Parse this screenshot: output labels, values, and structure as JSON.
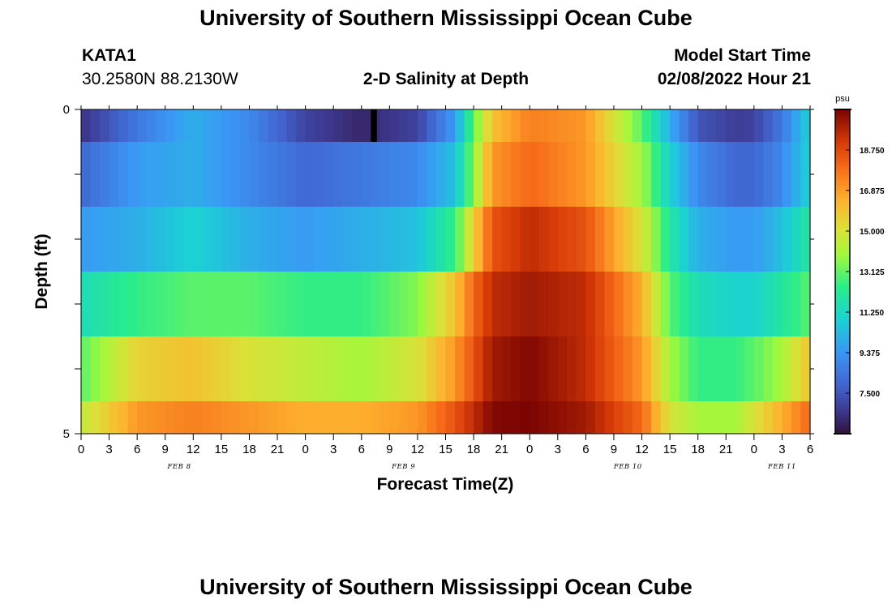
{
  "header": {
    "title_top": "University of Southern Mississippi Ocean Cube",
    "station": "KATA1",
    "coords": "30.2580N  88.2130W",
    "plot_title": "2-D Salinity at Depth",
    "model_label": "Model Start Time",
    "model_time": "02/08/2022 Hour 21",
    "title_bottom": "University of Southern Mississippi Ocean Cube"
  },
  "chart_data": {
    "type": "heatmap",
    "title": "2-D Salinity at Depth",
    "xlabel": "Forecast Time(Z)",
    "ylabel": "Depth (ft)",
    "ylim": [
      0,
      5
    ],
    "y_tick_labels": [
      "0",
      "5"
    ],
    "x_tick_labels": [
      "0",
      "3",
      "6",
      "9",
      "12",
      "15",
      "18",
      "21",
      "0",
      "3",
      "6",
      "9",
      "12",
      "15",
      "18",
      "21",
      "0",
      "3",
      "6",
      "9",
      "12",
      "15",
      "18",
      "21",
      "0",
      "3",
      "6"
    ],
    "x_hours_range": [
      0,
      78
    ],
    "date_labels": [
      {
        "label": "FEB 8",
        "hour": 10.5
      },
      {
        "label": "FEB 9",
        "hour": 34.5
      },
      {
        "label": "FEB 10",
        "hour": 58.5
      },
      {
        "label": "FEB 11",
        "hour": 75
      }
    ],
    "colorbar": {
      "unit": "psu",
      "min": 5.625,
      "max": 20.625,
      "tick_labels": [
        "18.750",
        "16.875",
        "15.000",
        "13.125",
        "11.250",
        "9.375",
        "7.500"
      ],
      "tick_values": [
        18.75,
        16.875,
        15.0,
        13.125,
        11.25,
        9.375,
        7.5
      ]
    },
    "depth_rows": [
      {
        "depth_range": [
          0.0,
          0.5
        ],
        "key_hours": [
          0,
          6,
          12,
          18,
          24,
          30,
          36,
          40,
          42,
          44,
          48,
          54,
          60,
          63,
          66,
          70,
          72,
          75,
          78
        ],
        "values": [
          6.5,
          8.5,
          10.0,
          9.0,
          7.0,
          6.2,
          7.0,
          9.5,
          13.0,
          16.0,
          17.5,
          17.0,
          13.0,
          10.0,
          7.5,
          6.8,
          7.0,
          8.5,
          11.0
        ]
      },
      {
        "depth_range": [
          0.5,
          1.5
        ],
        "key_hours": [
          0,
          6,
          12,
          18,
          24,
          30,
          36,
          40,
          42,
          44,
          48,
          54,
          60,
          63,
          66,
          70,
          72,
          75,
          78
        ],
        "values": [
          8.0,
          9.5,
          10.0,
          9.0,
          8.0,
          8.5,
          9.0,
          10.5,
          13.5,
          17.0,
          18.0,
          17.0,
          14.0,
          11.0,
          9.0,
          8.0,
          8.0,
          9.0,
          11.0
        ]
      },
      {
        "depth_range": [
          1.5,
          2.5
        ],
        "key_hours": [
          0,
          6,
          12,
          18,
          24,
          30,
          36,
          40,
          42,
          44,
          48,
          54,
          60,
          63,
          66,
          70,
          72,
          75,
          78
        ],
        "values": [
          9.5,
          10.0,
          11.0,
          10.0,
          9.5,
          10.0,
          10.5,
          12.5,
          15.5,
          18.5,
          19.5,
          18.5,
          15.0,
          12.0,
          10.0,
          9.5,
          9.5,
          10.5,
          12.0
        ]
      },
      {
        "depth_range": [
          2.5,
          3.5
        ],
        "key_hours": [
          0,
          6,
          12,
          18,
          24,
          30,
          36,
          40,
          42,
          44,
          48,
          54,
          60,
          63,
          66,
          70,
          72,
          75,
          78
        ],
        "values": [
          11.5,
          12.5,
          13.0,
          13.0,
          12.5,
          12.5,
          13.5,
          16.0,
          18.0,
          19.5,
          20.0,
          19.5,
          16.5,
          13.0,
          11.5,
          11.0,
          11.0,
          12.0,
          13.0
        ]
      },
      {
        "depth_range": [
          3.5,
          4.5
        ],
        "key_hours": [
          0,
          6,
          12,
          18,
          24,
          30,
          36,
          40,
          42,
          44,
          48,
          54,
          60,
          63,
          66,
          70,
          72,
          75,
          78
        ],
        "values": [
          13.0,
          15.5,
          16.0,
          15.0,
          14.5,
          14.0,
          15.0,
          17.0,
          18.5,
          20.0,
          20.5,
          19.5,
          17.0,
          14.0,
          12.5,
          12.5,
          13.0,
          14.0,
          16.0
        ]
      },
      {
        "depth_range": [
          4.5,
          5.0
        ],
        "key_hours": [
          0,
          6,
          12,
          18,
          24,
          30,
          36,
          40,
          42,
          44,
          48,
          54,
          60,
          63,
          66,
          70,
          72,
          75,
          78
        ],
        "values": [
          14.5,
          17.0,
          17.5,
          17.0,
          16.5,
          16.5,
          17.0,
          18.5,
          19.5,
          20.5,
          20.6,
          20.0,
          18.0,
          15.0,
          14.0,
          14.0,
          15.0,
          16.5,
          18.0
        ]
      }
    ],
    "missing_marker": {
      "hour": 31,
      "depth_range": [
        0.0,
        0.5
      ]
    }
  }
}
